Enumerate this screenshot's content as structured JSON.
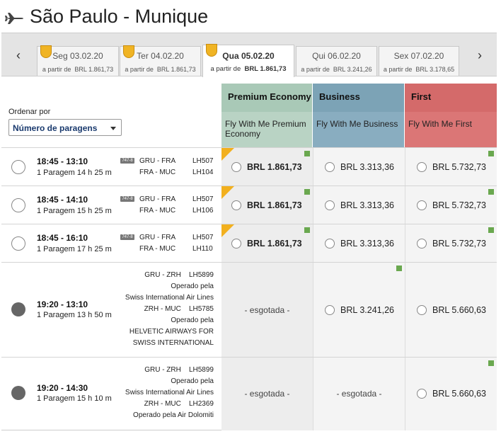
{
  "header": {
    "title": "São Paulo - Munique"
  },
  "datebar": {
    "prev": "‹",
    "next": "›",
    "dates": [
      {
        "date": "Seg 03.02.20",
        "from": "a partir de",
        "price": "BRL 1.861,73"
      },
      {
        "date": "Ter 04.02.20",
        "from": "a partir de",
        "price": "BRL 1.861,73"
      },
      {
        "date": "Qua 05.02.20",
        "from": "a partir de",
        "price": "BRL 1.861,73"
      },
      {
        "date": "Qui 06.02.20",
        "from": "a partir de",
        "price": "BRL 3.241,26"
      },
      {
        "date": "Sex 07.02.20",
        "from": "a partir de",
        "price": "BRL 3.178,65"
      }
    ]
  },
  "sort": {
    "label": "Ordenar por",
    "value": "Número de paragens"
  },
  "cabins": [
    {
      "title": "Premium Economy",
      "subtitle": "Fly With Me Premium Economy",
      "color": "#a9c9b7"
    },
    {
      "title": "Business",
      "subtitle": "Fly With Me Business",
      "color": "#7ca3b6"
    },
    {
      "title": "First",
      "subtitle": "Fly With Me First",
      "color": "#d46a6a"
    }
  ],
  "flights": [
    {
      "times": "18:45 - 13:10",
      "stops": "1 Paragem 14 h 25 m",
      "aircraft": "747-8",
      "segments": [
        {
          "route": "GRU - FRA",
          "flight": "LH507"
        },
        {
          "route": "FRA - MUC",
          "flight": "LH104"
        }
      ],
      "prices": {
        "pe": "BRL 1.861,73",
        "bu": "BRL 3.313,36",
        "fi": "BRL 5.732,73"
      }
    },
    {
      "times": "18:45 - 14:10",
      "stops": "1 Paragem 15 h 25 m",
      "aircraft": "747-8",
      "segments": [
        {
          "route": "GRU - FRA",
          "flight": "LH507"
        },
        {
          "route": "FRA - MUC",
          "flight": "LH106"
        }
      ],
      "prices": {
        "pe": "BRL 1.861,73",
        "bu": "BRL 3.313,36",
        "fi": "BRL 5.732,73"
      }
    },
    {
      "times": "18:45 - 16:10",
      "stops": "1 Paragem 17 h 25 m",
      "aircraft": "747-8",
      "segments": [
        {
          "route": "GRU - FRA",
          "flight": "LH507"
        },
        {
          "route": "FRA - MUC",
          "flight": "LH110"
        }
      ],
      "prices": {
        "pe": "BRL 1.861,73",
        "bu": "BRL 3.313,36",
        "fi": "BRL 5.732,73"
      }
    },
    {
      "times": "19:20 - 13:10",
      "stops": "1 Paragem 13 h 50 m",
      "lines": [
        "GRU - ZRH    LH5899",
        "Operado pela",
        "Swiss International Air Lines",
        "ZRH - MUC    LH5785",
        "Operado pela",
        "HELVETIC AIRWAYS FOR",
        "SWISS INTERNATIONAL"
      ],
      "prices": {
        "pe": "- esgotada -",
        "bu": "BRL 3.241,26",
        "fi": "BRL 5.660,63"
      }
    },
    {
      "times": "19:20 - 14:30",
      "stops": "1 Paragem 15 h 10 m",
      "lines": [
        "GRU - ZRH    LH5899",
        "Operado pela",
        "Swiss International Air Lines",
        "ZRH - MUC    LH2369",
        "Operado pela Air Dolomiti"
      ],
      "prices": {
        "pe": "- esgotada -",
        "bu": "- esgotada -",
        "fi": "BRL 5.660,63"
      }
    }
  ]
}
